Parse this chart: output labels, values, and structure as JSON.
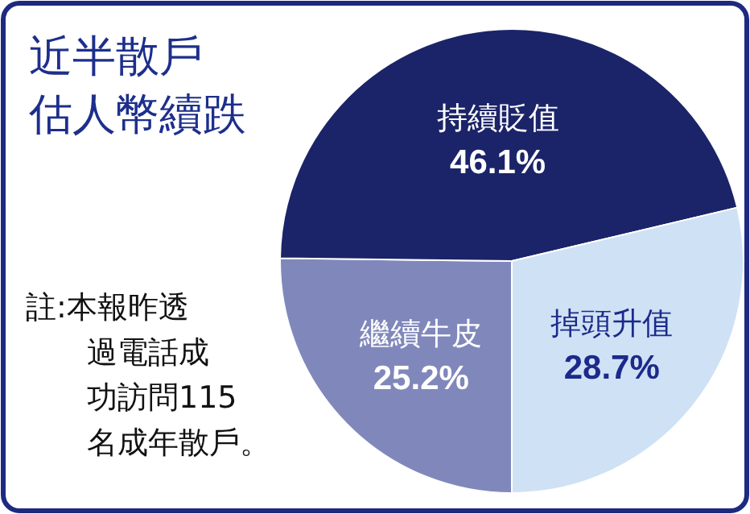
{
  "chart_data": {
    "type": "pie",
    "title": "近半散戶估人幣續跌",
    "categories": [
      "繼續牛皮",
      "持續貶值",
      "掉頭升值"
    ],
    "values": [
      25.2,
      46.1,
      28.7
    ],
    "value_labels": [
      "25.2%",
      "46.1%",
      "28.7%"
    ],
    "colors": [
      "#8088bb",
      "#1b2468",
      "#cfe1f4"
    ],
    "annotations": [
      "註:本報昨透過電話成功訪問115名成年散戶。"
    ]
  }
}
